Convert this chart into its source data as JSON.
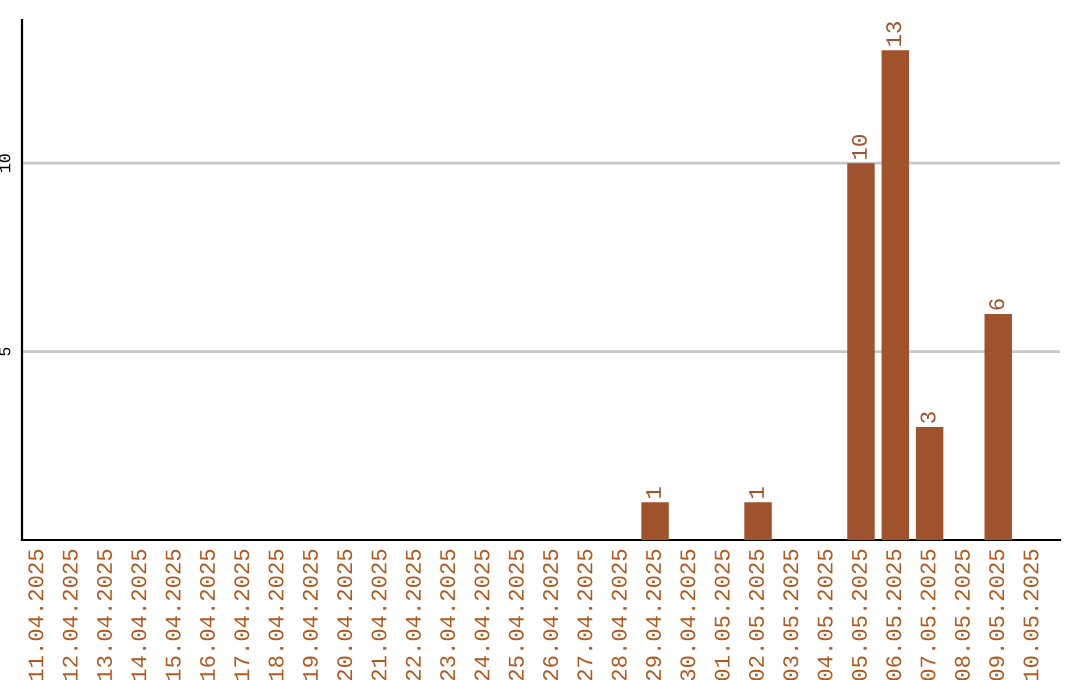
{
  "chart_data": {
    "type": "bar",
    "categories": [
      "11.04.2025",
      "12.04.2025",
      "13.04.2025",
      "14.04.2025",
      "15.04.2025",
      "16.04.2025",
      "17.04.2025",
      "18.04.2025",
      "19.04.2025",
      "20.04.2025",
      "21.04.2025",
      "22.04.2025",
      "23.04.2025",
      "24.04.2025",
      "25.04.2025",
      "26.04.2025",
      "27.04.2025",
      "28.04.2025",
      "29.04.2025",
      "30.04.2025",
      "01.05.2025",
      "02.05.2025",
      "03.05.2025",
      "04.05.2025",
      "05.05.2025",
      "06.05.2025",
      "07.05.2025",
      "08.05.2025",
      "09.05.2025",
      "10.05.2025"
    ],
    "series": [
      {
        "color": "#a0522d",
        "values": [
          0,
          0,
          0,
          0,
          0,
          0,
          0,
          0,
          0,
          0,
          0,
          0,
          0,
          0,
          0,
          0,
          0,
          0,
          1,
          0,
          0,
          1,
          0,
          0,
          10,
          13,
          3,
          0,
          6,
          0
        ],
        "value_labels": [
          null,
          null,
          null,
          null,
          null,
          null,
          null,
          null,
          null,
          null,
          null,
          null,
          null,
          null,
          null,
          null,
          null,
          null,
          "1",
          null,
          null,
          "1",
          null,
          null,
          "10",
          "13",
          "3",
          null,
          "6",
          null
        ]
      }
    ],
    "ylim": [
      0,
      13.8
    ],
    "yticks": [
      5,
      10
    ],
    "grid": "y",
    "legend": false
  }
}
